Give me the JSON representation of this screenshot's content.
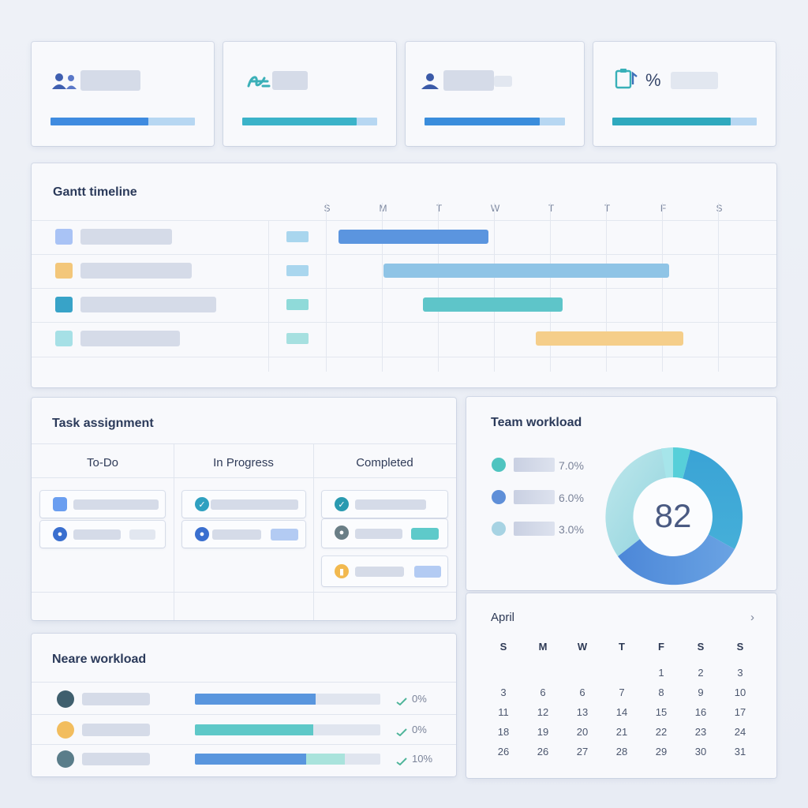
{
  "stats": [
    {
      "icon": "users-icon",
      "fill_fraction": 0.68,
      "color": "#3f8be0"
    },
    {
      "icon": "signature-icon",
      "fill_fraction": 0.85,
      "color": "#3bb3c9"
    },
    {
      "icon": "user-icon",
      "fill_fraction": 0.82,
      "color": "#3a8ddc"
    },
    {
      "icon": "clipboard-percent-icon",
      "text": "%",
      "fill_fraction": 0.82,
      "color": "#2fa9be"
    }
  ],
  "gantt": {
    "title": "Gantt timeline",
    "days": [
      "S",
      "M",
      "T",
      "W",
      "T",
      "T",
      "F",
      "S"
    ],
    "rows": [
      {
        "square_color": "#a9c3f5",
        "tag_color": "#a9d6ee",
        "bar_color": "#5b95df",
        "start_day": 0.2,
        "end_day": 2.87
      },
      {
        "square_color": "#f3c77a",
        "tag_color": "#a9d6ee",
        "bar_color": "#8fc4e6",
        "start_day": 1.0,
        "end_day": 6.1
      },
      {
        "square_color": "#38a3c8",
        "tag_color": "#8fdad9",
        "bar_color": "#5ec5c9",
        "start_day": 1.7,
        "end_day": 4.2
      },
      {
        "square_color": "#a6e0e6",
        "tag_color": "#a6e0e0",
        "bar_color": "#f5ce8a",
        "start_day": 3.72,
        "end_day": 6.35
      }
    ]
  },
  "tasks": {
    "title": "Task assignment",
    "columns": [
      "To-Do",
      "In Progress",
      "Completed"
    ]
  },
  "team": {
    "title": "Team workload",
    "center_value": "82",
    "legend": [
      {
        "color": "#4fc4c0",
        "value": "7.0%"
      },
      {
        "color": "#5f8fd8",
        "value": "6.0%"
      },
      {
        "color": "#a7d3e3",
        "value": "3.0%"
      }
    ]
  },
  "calendar": {
    "month": "April",
    "weekdays": [
      "S",
      "M",
      "W",
      "T",
      "F",
      "S",
      "S"
    ],
    "weeks": [
      [
        "",
        "",
        "",
        "",
        "1",
        "2",
        "3"
      ],
      [
        "3",
        "6",
        "6",
        "7",
        "8",
        "9",
        "10"
      ],
      [
        "11",
        "12",
        "13",
        "14",
        "15",
        "16",
        "17"
      ],
      [
        "18",
        "19",
        "20",
        "21",
        "22",
        "23",
        "24"
      ],
      [
        "26",
        "26",
        "27",
        "28",
        "29",
        "30",
        "31"
      ]
    ]
  },
  "member": {
    "title": "Neare workload",
    "rows": [
      {
        "fill_fraction": 0.65,
        "fill_color": "#5996de",
        "extra_fraction": 0,
        "extra_color": "#a9e3dc",
        "value": "0%",
        "avatar_color": "#3f5f6e"
      },
      {
        "fill_fraction": 0.64,
        "fill_color": "#5ec8c8",
        "extra_fraction": 0,
        "extra_color": "#a9e3dc",
        "value": "0%",
        "avatar_color": "#f2bd5e"
      },
      {
        "fill_fraction": 0.6,
        "fill_color": "#5996de",
        "extra_fraction": 0.21,
        "extra_color": "#a9e3dc",
        "value": "10%",
        "avatar_color": "#5a7d8a"
      }
    ]
  }
}
